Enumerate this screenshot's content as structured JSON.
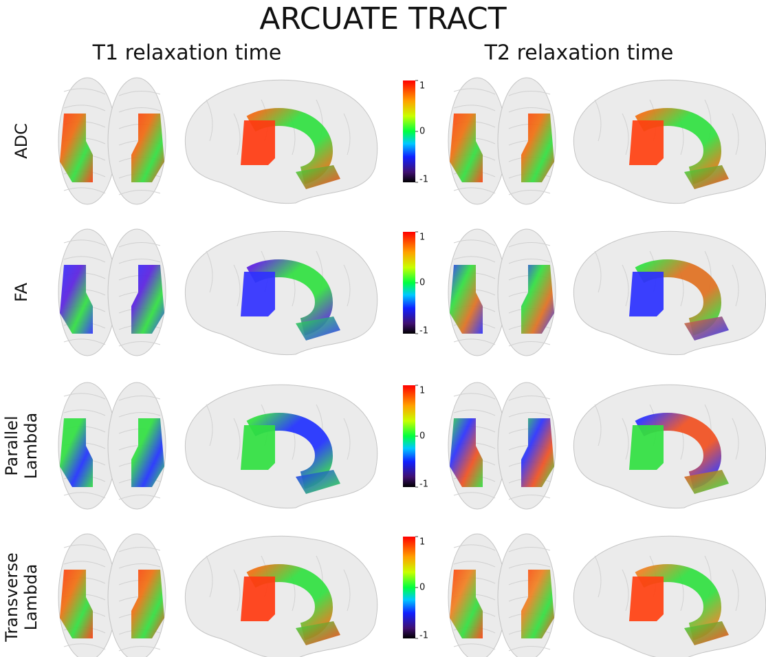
{
  "title": "ARCUATE TRACT",
  "columns": [
    "T1 relaxation time",
    "T2 relaxation time"
  ],
  "rows": [
    {
      "lines": [
        "ADC"
      ]
    },
    {
      "lines": [
        "FA"
      ]
    },
    {
      "lines": [
        "Parallel",
        "Lambda"
      ]
    },
    {
      "lines": [
        "Transverse",
        "Lambda"
      ]
    }
  ],
  "colorbar": {
    "range": [
      -1,
      1
    ],
    "ticks": [
      1,
      0,
      -1
    ]
  }
}
